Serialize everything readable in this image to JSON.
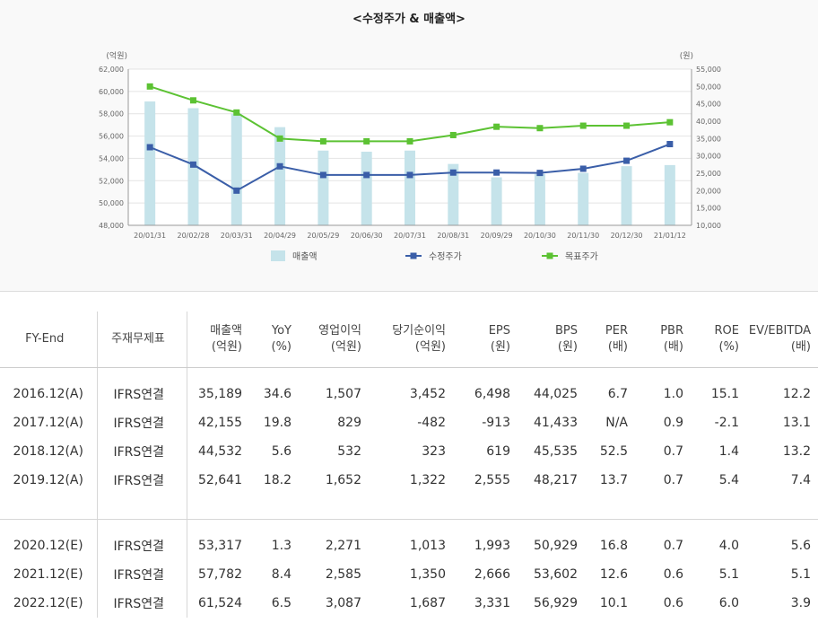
{
  "chart_title": "<수정주가 & 매출액>",
  "chart_data": {
    "type": "bar+line",
    "title": "<수정주가 & 매출액>",
    "categories": [
      "20/01/31",
      "20/02/28",
      "20/03/31",
      "20/04/29",
      "20/05/29",
      "20/06/30",
      "20/07/31",
      "20/08/31",
      "20/09/29",
      "20/10/30",
      "20/11/30",
      "20/12/30",
      "21/01/12"
    ],
    "left_axis": {
      "unit_label": "(억원)",
      "ylim": [
        48000,
        62000
      ],
      "ticks": [
        "62,000",
        "60,000",
        "58,000",
        "56,000",
        "54,000",
        "52,000",
        "50,000",
        "48,000"
      ]
    },
    "right_axis": {
      "unit_label": "(원)",
      "ylim": [
        10000,
        55000
      ],
      "ticks": [
        "55,000",
        "50,000",
        "45,000",
        "40,000",
        "35,000",
        "30,000",
        "25,000",
        "20,000",
        "15,000",
        "10,000"
      ]
    },
    "series": [
      {
        "name": "매출액",
        "type": "bar",
        "axis": "left",
        "color": "#c5e3ea",
        "values": [
          59100,
          58500,
          58000,
          56800,
          54700,
          54600,
          54700,
          53500,
          52300,
          52600,
          52700,
          53300,
          53400
        ]
      },
      {
        "name": "수정주가",
        "type": "line",
        "axis": "right",
        "color": "#3a5ea8",
        "values": [
          32500,
          27500,
          20000,
          27000,
          24500,
          24500,
          24500,
          25200,
          25200,
          25100,
          26300,
          28600,
          33400
        ]
      },
      {
        "name": "목표주가",
        "type": "line",
        "axis": "right",
        "color": "#5cc233",
        "values": [
          50000,
          46000,
          42500,
          35000,
          34200,
          34200,
          34200,
          36000,
          38400,
          38000,
          38700,
          38700,
          39700
        ]
      }
    ],
    "grid": true,
    "legend_position": "bottom"
  },
  "table": {
    "headers": [
      {
        "l1": "FY-End",
        "l2": ""
      },
      {
        "l1": "주재무제표",
        "l2": ""
      },
      {
        "l1": "매출액",
        "l2": "(억원)"
      },
      {
        "l1": "YoY",
        "l2": "(%)"
      },
      {
        "l1": "영업이익",
        "l2": "(억원)"
      },
      {
        "l1": "당기순이익",
        "l2": "(억원)"
      },
      {
        "l1": "EPS",
        "l2": "(원)"
      },
      {
        "l1": "BPS",
        "l2": "(원)"
      },
      {
        "l1": "PER",
        "l2": "(배)"
      },
      {
        "l1": "PBR",
        "l2": "(배)"
      },
      {
        "l1": "ROE",
        "l2": "(%)"
      },
      {
        "l1": "EV/EBITDA",
        "l2": "(배)"
      }
    ],
    "actual_rows": [
      [
        "2016.12(A)",
        "IFRS연결",
        "35,189",
        "34.6",
        "1,507",
        "3,452",
        "6,498",
        "44,025",
        "6.7",
        "1.0",
        "15.1",
        "12.2"
      ],
      [
        "2017.12(A)",
        "IFRS연결",
        "42,155",
        "19.8",
        "829",
        "-482",
        "-913",
        "41,433",
        "N/A",
        "0.9",
        "-2.1",
        "13.1"
      ],
      [
        "2018.12(A)",
        "IFRS연결",
        "44,532",
        "5.6",
        "532",
        "323",
        "619",
        "45,535",
        "52.5",
        "0.7",
        "1.4",
        "13.2"
      ],
      [
        "2019.12(A)",
        "IFRS연결",
        "52,641",
        "18.2",
        "1,652",
        "1,322",
        "2,555",
        "48,217",
        "13.7",
        "0.7",
        "5.4",
        "7.4"
      ]
    ],
    "estimate_rows": [
      [
        "2020.12(E)",
        "IFRS연결",
        "53,317",
        "1.3",
        "2,271",
        "1,013",
        "1,993",
        "50,929",
        "16.8",
        "0.7",
        "4.0",
        "5.6"
      ],
      [
        "2021.12(E)",
        "IFRS연결",
        "57,782",
        "8.4",
        "2,585",
        "1,350",
        "2,666",
        "53,602",
        "12.6",
        "0.6",
        "5.1",
        "5.1"
      ],
      [
        "2022.12(E)",
        "IFRS연결",
        "61,524",
        "6.5",
        "3,087",
        "1,687",
        "3,331",
        "56,929",
        "10.1",
        "0.6",
        "6.0",
        "3.9"
      ]
    ]
  }
}
